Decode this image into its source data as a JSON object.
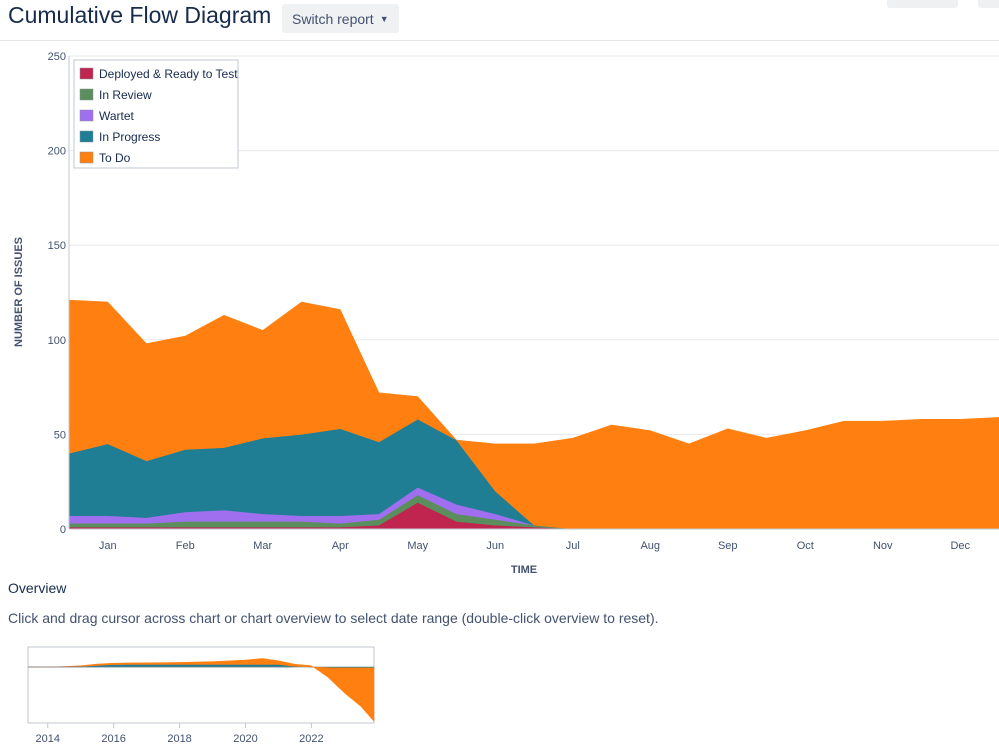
{
  "header": {
    "title": "Cumulative Flow Diagram",
    "switch_label": "Switch report",
    "switch_icon": "chevron-down-icon"
  },
  "overview": {
    "heading": "Overview",
    "help": "Click and drag cursor across chart or chart overview to select date range (double-click overview to reset)."
  },
  "chart_data": {
    "type": "area",
    "stacked": true,
    "ylabel": "NUMBER OF ISSUES",
    "xlabel": "TIME",
    "ylim": [
      0,
      250
    ],
    "yticks": [
      0,
      50,
      100,
      150,
      200,
      250
    ],
    "grid": true,
    "legend": "top-left",
    "x": [
      "Jan 01",
      "Jan 15",
      "Feb 01",
      "Feb 15",
      "Mar 01",
      "Mar 15",
      "Apr 01",
      "Apr 15",
      "May 01",
      "May 15",
      "Jun 01",
      "Jun 15",
      "Jul 01",
      "Jul 15",
      "Aug 01",
      "Aug 15",
      "Sep 01",
      "Sep 15",
      "Oct 01",
      "Oct 15",
      "Nov 01",
      "Nov 15",
      "Dec 01",
      "Dec 15",
      "Dec 31"
    ],
    "xticks": [
      "Jan",
      "Feb",
      "Mar",
      "Apr",
      "May",
      "Jun",
      "Jul",
      "Aug",
      "Sep",
      "Oct",
      "Nov",
      "Dec"
    ],
    "series": [
      {
        "name": "Deployed & Ready to Test",
        "color": "#c0254f",
        "values": [
          1,
          1,
          1,
          1,
          1,
          1,
          1,
          1,
          2,
          14,
          4,
          2,
          1,
          0,
          0,
          0,
          0,
          0,
          0,
          0,
          0,
          0,
          0,
          0,
          0
        ]
      },
      {
        "name": "In Review",
        "color": "#5a8e5c",
        "values": [
          2,
          2,
          2,
          3,
          3,
          3,
          3,
          2,
          3,
          4,
          4,
          3,
          1,
          0,
          0,
          0,
          0,
          0,
          0,
          0,
          0,
          0,
          0,
          0,
          0
        ]
      },
      {
        "name": "Wartet",
        "color": "#9f6ff0",
        "values": [
          4,
          4,
          3,
          5,
          6,
          4,
          3,
          4,
          3,
          4,
          5,
          3,
          0,
          0,
          0,
          0,
          0,
          0,
          0,
          0,
          0,
          0,
          0,
          0,
          0
        ]
      },
      {
        "name": "In Progress",
        "color": "#1f7d94",
        "values": [
          33,
          38,
          30,
          33,
          33,
          40,
          43,
          46,
          38,
          36,
          34,
          12,
          0,
          0,
          0,
          0,
          0,
          0,
          0,
          0,
          0,
          0,
          0,
          0,
          0
        ]
      },
      {
        "name": "To Do",
        "color": "#ff8010",
        "values": [
          81,
          75,
          62,
          60,
          70,
          57,
          70,
          63,
          26,
          12,
          0,
          25,
          43,
          48,
          55,
          52,
          45,
          53,
          48,
          52,
          57,
          57,
          58,
          58,
          59
        ]
      }
    ]
  },
  "overview_chart_data": {
    "type": "area",
    "stacked": true,
    "xticks": [
      "2014",
      "2016",
      "2018",
      "2020",
      "2022"
    ],
    "x": [
      2013.4,
      2014,
      2014.5,
      2015,
      2015.5,
      2016,
      2016.5,
      2017,
      2017.5,
      2018,
      2018.5,
      2019,
      2019.5,
      2020,
      2020.5,
      2021,
      2021.5,
      2022,
      2022.5,
      2023,
      2023.5,
      2023.9
    ],
    "series": [
      {
        "name": "In Progress",
        "color": "#1f7d94",
        "values": [
          0,
          0,
          0.2,
          0.6,
          1.6,
          2.4,
          2.6,
          2.6,
          2.6,
          2.6,
          2.6,
          2.6,
          2.6,
          2.6,
          2.6,
          2.6,
          0.6,
          0,
          -0.6,
          -0.8,
          -0.8,
          -0.8
        ]
      },
      {
        "name": "To Do",
        "color": "#ff8010",
        "values": [
          0,
          0,
          0.3,
          0.7,
          1.4,
          1.5,
          1.6,
          1.7,
          1.9,
          2.1,
          2.5,
          2.9,
          3.7,
          4.5,
          6.1,
          3.8,
          2.2,
          1.4,
          -9.8,
          -25.6,
          -39.4,
          -54.7
        ]
      }
    ]
  }
}
